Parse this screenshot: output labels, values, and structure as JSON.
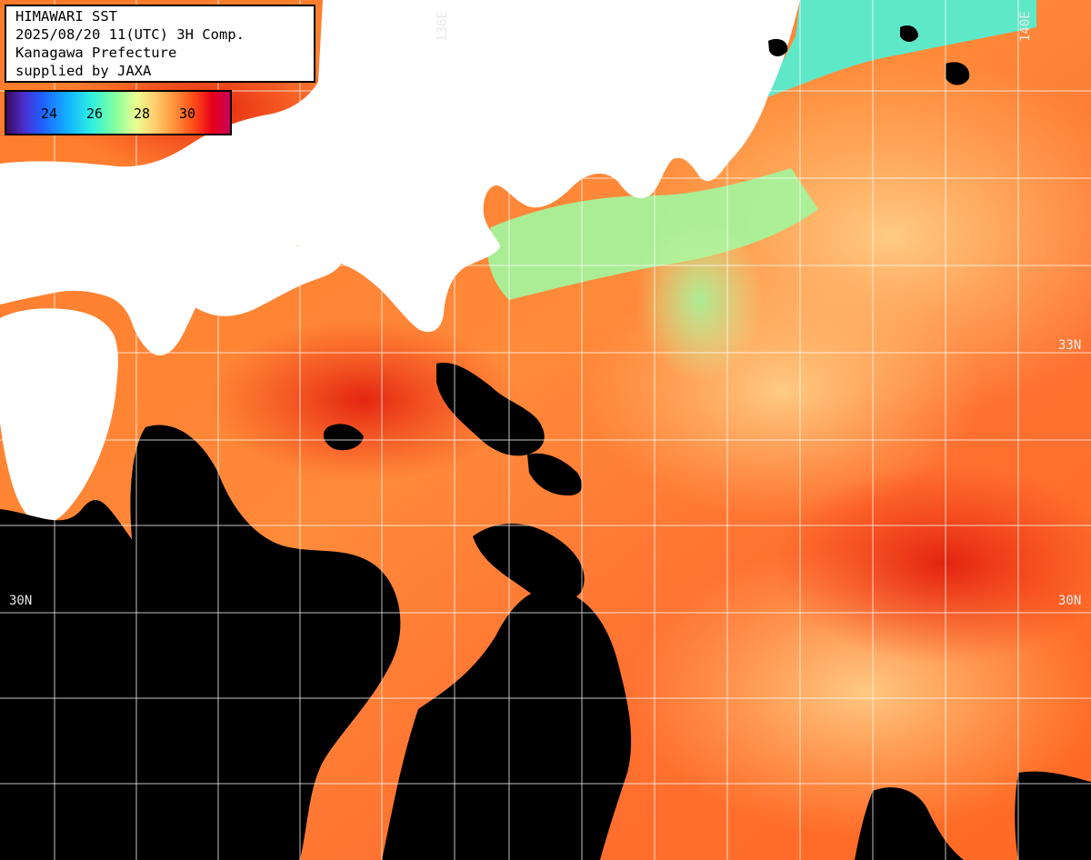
{
  "header": {
    "title": "HIMAWARI SST",
    "datetime": "2025/08/20 11(UTC) 3H Comp.",
    "region": "Kanagawa Prefecture",
    "supplier": "supplied by JAXA"
  },
  "legend": {
    "ticks": [
      "24",
      "26",
      "28",
      "30"
    ],
    "colors": [
      "#3a0a5e",
      "#1f5fff",
      "#12b6ff",
      "#2ef0e0",
      "#7dffa0",
      "#e8ff90",
      "#ffd070",
      "#ff9a40",
      "#ff4a18",
      "#e8001a",
      "#c8005a"
    ]
  },
  "grid_labels": {
    "lon_136": "136E",
    "lon_140": "140E",
    "lat_33_right": "33N",
    "lat_30_left": "30N",
    "lat_30_right": "30N"
  },
  "colors": {
    "land": "#ffffff",
    "no_data": "#000000",
    "grid": "#ffffff",
    "warm_sea": "#ff6a1e",
    "hot_sea": "#e82a10",
    "mild_sea": "#ffc070",
    "cool_sea": "#a8f590",
    "cold_sea": "#3ae6c8"
  }
}
